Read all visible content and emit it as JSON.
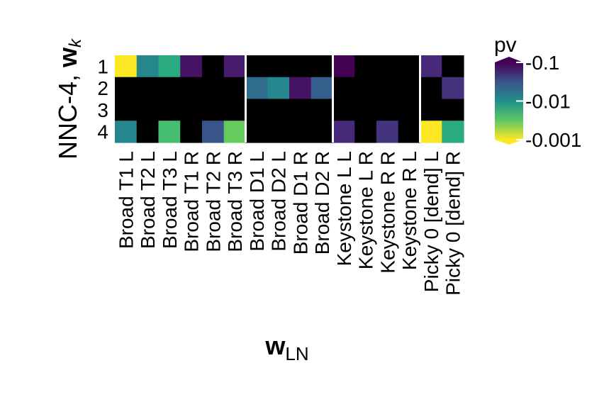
{
  "chart_data": {
    "type": "heatmap",
    "title": "",
    "xlabel_main": "w",
    "xlabel_sub": "LN",
    "ylabel_text": "NNC-4, ",
    "ylabel_w": "w",
    "ylabel_sub": "k",
    "x_categories": [
      "Broad T1 L",
      "Broad T2 L",
      "Broad T3 L",
      "Broad T1 R",
      "Broad T2 R",
      "Broad T3 R",
      "Broad D1 L",
      "Broad D2 L",
      "Broad D1 R",
      "Broad D2 R",
      "Keystone L L",
      "Keystone L R",
      "Keystone R R",
      "Keystone R L",
      "Picky 0 [dend] L",
      "Picky 0 [dend] R"
    ],
    "y_categories": [
      "1",
      "2",
      "3",
      "4"
    ],
    "column_groups": [
      6,
      4,
      4,
      2
    ],
    "values": [
      [
        0.001,
        0.012,
        0.006,
        0.08,
        null,
        0.07,
        null,
        null,
        null,
        null,
        0.12,
        null,
        null,
        null,
        0.06,
        null
      ],
      [
        null,
        null,
        null,
        null,
        null,
        null,
        0.02,
        0.012,
        0.08,
        0.025,
        null,
        null,
        null,
        null,
        null,
        0.05
      ],
      [
        null,
        null,
        null,
        null,
        null,
        null,
        null,
        null,
        null,
        null,
        null,
        null,
        null,
        null,
        null,
        null
      ],
      [
        0.012,
        null,
        0.004,
        null,
        0.03,
        0.003,
        null,
        null,
        null,
        null,
        0.06,
        null,
        0.05,
        null,
        0.001,
        0.006
      ]
    ],
    "missing_color": "#000000",
    "colorscale": "viridis",
    "legend": {
      "title": "pv",
      "ticks": [
        "0.1",
        "0.01",
        "0.001"
      ],
      "scale": "log",
      "range": [
        0.001,
        0.1
      ],
      "reversed": true,
      "position": "right"
    }
  }
}
